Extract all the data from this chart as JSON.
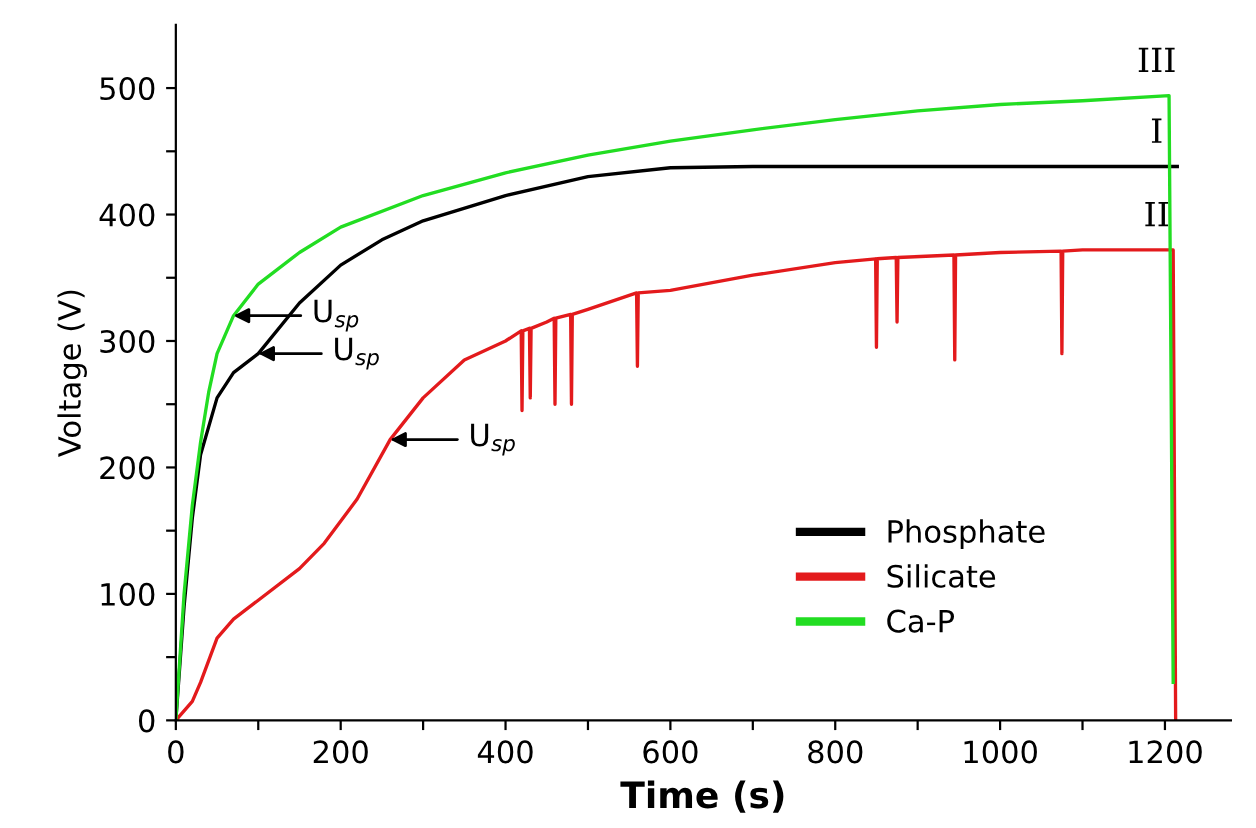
{
  "chart_data": {
    "type": "line",
    "xlabel": "Time (s)",
    "ylabel": "Voltage (V)",
    "xlim": [
      0,
      1280
    ],
    "ylim": [
      0,
      550
    ],
    "xticks": [
      0,
      {
        "value": 100,
        "label": null
      },
      200,
      {
        "value": 300,
        "label": null
      },
      400,
      {
        "value": 500,
        "label": null
      },
      600,
      {
        "value": 700,
        "label": null
      },
      800,
      {
        "value": 900,
        "label": null
      },
      1000,
      {
        "value": 1100,
        "label": null
      },
      1200
    ],
    "yticks": [
      0,
      {
        "value": 50,
        "label": null
      },
      100,
      {
        "value": 150,
        "label": null
      },
      200,
      {
        "value": 250,
        "label": null
      },
      300,
      {
        "value": 350,
        "label": null
      },
      400,
      {
        "value": 450,
        "label": null
      },
      500
    ],
    "legend": "bottom right",
    "grid": false,
    "line_style": "solid",
    "marker": "none",
    "series": [
      {
        "name": "Phosphate",
        "color": "#000000",
        "x": [
          0,
          10,
          20,
          30,
          50,
          70,
          100,
          150,
          200,
          250,
          300,
          400,
          500,
          600,
          700,
          800,
          1000,
          1215
        ],
        "values": [
          0,
          90,
          160,
          210,
          255,
          275,
          290,
          330,
          360,
          380,
          395,
          415,
          430,
          437,
          438,
          438,
          438,
          438
        ]
      },
      {
        "name": "Silicate",
        "color": "#e31a1c",
        "x": [
          0,
          20,
          30,
          50,
          70,
          100,
          150,
          180,
          220,
          260,
          300,
          350,
          400,
          419,
          420,
          421,
          429,
          430,
          431,
          450,
          459,
          460,
          461,
          479,
          480,
          481,
          500,
          559,
          560,
          561,
          600,
          700,
          800,
          849,
          850,
          851,
          874,
          875,
          876,
          944,
          945,
          946,
          1000,
          1074,
          1075,
          1076,
          1100,
          1210,
          1213
        ],
        "values": [
          0,
          15,
          30,
          65,
          80,
          95,
          120,
          140,
          175,
          222,
          255,
          285,
          300,
          308,
          245,
          308,
          310,
          255,
          310,
          315,
          318,
          250,
          318,
          321,
          250,
          321,
          325,
          338,
          280,
          338,
          340,
          352,
          362,
          365,
          295,
          365,
          366,
          315,
          366,
          368,
          285,
          368,
          370,
          371,
          290,
          371,
          372,
          372,
          0
        ]
      },
      {
        "name": "Ca-P",
        "color": "#22dd22",
        "x": [
          0,
          10,
          20,
          30,
          40,
          50,
          70,
          100,
          150,
          200,
          300,
          400,
          500,
          600,
          700,
          800,
          900,
          1000,
          1100,
          1205,
          1210
        ],
        "values": [
          0,
          100,
          170,
          220,
          260,
          290,
          320,
          345,
          370,
          390,
          415,
          433,
          447,
          458,
          467,
          475,
          482,
          487,
          490,
          494,
          30
        ]
      }
    ],
    "annotations": [
      {
        "text": "U$_{sp}$",
        "x": 70,
        "y": 320
      },
      {
        "text": "U$_{sp}$",
        "x": 100,
        "y": 290
      },
      {
        "text": "U$_{sp}$",
        "x": 260,
        "y": 222
      },
      {
        "text": "III",
        "x": 1190,
        "y": 494
      },
      {
        "text": "I",
        "x": 1190,
        "y": 438
      },
      {
        "text": "II",
        "x": 1190,
        "y": 372
      }
    ]
  }
}
